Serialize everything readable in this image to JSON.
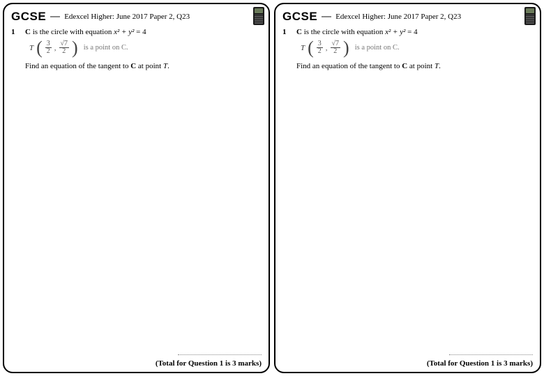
{
  "header": {
    "gcse": "GCSE",
    "paper_ref": "Edexcel Higher: June 2017 Paper 2, Q23"
  },
  "question": {
    "number": "1",
    "circle_prefix": "C",
    "circle_text": " is the circle with equation ",
    "equation_lhs": "x² + y²",
    "equation_rhs": " = 4",
    "T": "T",
    "frac1_num": "3",
    "frac1_den": "2",
    "comma": ",",
    "frac2_num": "√7",
    "frac2_den": "2",
    "is_point": "is a point on C.",
    "find_pre": "Find an equation of the tangent to ",
    "find_C": "C",
    "find_mid": " at point ",
    "find_T": "T",
    "find_post": "."
  },
  "footer": {
    "total": "(Total for Question 1 is 3 marks)"
  }
}
